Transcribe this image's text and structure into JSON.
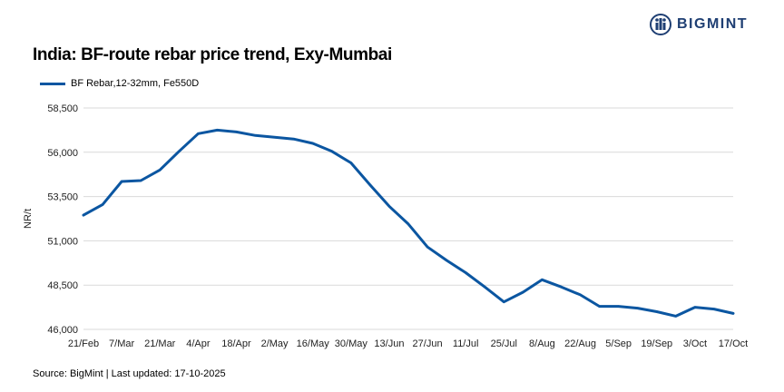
{
  "logo": {
    "text": "BIGMINT",
    "color": "#1f3f73"
  },
  "chart_data": {
    "type": "line",
    "title": "India: BF-route rebar price trend, Exy-Mumbai",
    "xlabel": "",
    "ylabel": "NR/t",
    "ylim": [
      46000,
      58500
    ],
    "yticks": [
      46000,
      48500,
      51000,
      53500,
      56000,
      58500
    ],
    "ytick_labels": [
      "46,000",
      "48,500",
      "51,000",
      "53,500",
      "56,000",
      "58,500"
    ],
    "grid": true,
    "legend_position": "top-left",
    "line_color": "#0b56a1",
    "x_tick_labels": [
      "21/Feb",
      "7/Mar",
      "21/Mar",
      "4/Apr",
      "18/Apr",
      "2/May",
      "16/May",
      "30/May",
      "13/Jun",
      "27/Jun",
      "11/Jul",
      "25/Jul",
      "8/Aug",
      "22/Aug",
      "5/Sep",
      "19/Sep",
      "3/Oct",
      "17/Oct"
    ],
    "series": [
      {
        "name": "BF Rebar,12-32mm, Fe550D",
        "values": [
          52450,
          53050,
          54350,
          54400,
          55000,
          56050,
          57050,
          57250,
          57150,
          56950,
          56850,
          56750,
          56500,
          56050,
          55400,
          54150,
          52950,
          51950,
          50650,
          49900,
          49200,
          48400,
          47550,
          48100,
          48800,
          48400,
          47950,
          47300,
          47300,
          47200,
          47000,
          46750,
          47250,
          47150,
          46900
        ]
      }
    ]
  },
  "source": "Source: BigMint | Last updated: 17-10-2025"
}
